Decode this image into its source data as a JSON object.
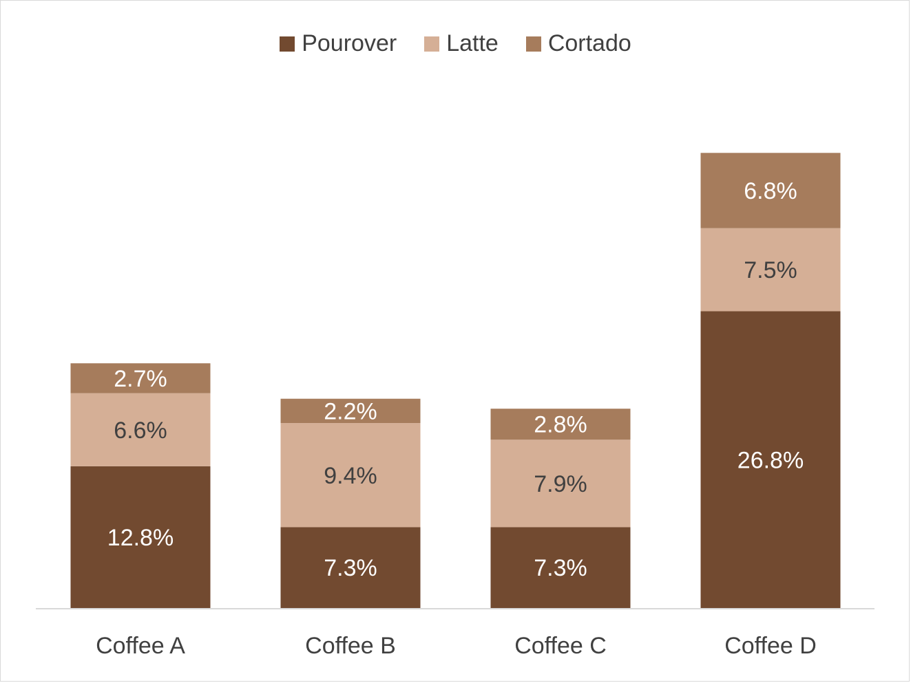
{
  "chart_data": {
    "type": "bar",
    "stacked": true,
    "categories": [
      "Coffee A",
      "Coffee B",
      "Coffee C",
      "Coffee D"
    ],
    "series": [
      {
        "name": "Pourover",
        "color": "#724a30",
        "label_color": "#ffffff",
        "values": [
          12.8,
          7.3,
          7.3,
          26.8
        ],
        "labels": [
          "12.8%",
          "7.3%",
          "7.3%",
          "26.8%"
        ]
      },
      {
        "name": "Latte",
        "color": "#d5af96",
        "label_color": "#404040",
        "values": [
          6.6,
          9.4,
          7.9,
          7.5
        ],
        "labels": [
          "6.6%",
          "9.4%",
          "7.9%",
          "7.5%"
        ]
      },
      {
        "name": "Cortado",
        "color": "#a67c5c",
        "label_color": "#ffffff",
        "values": [
          2.7,
          2.2,
          2.8,
          6.8
        ],
        "labels": [
          "2.7%",
          "2.2%",
          "2.8%",
          "6.8%"
        ]
      }
    ],
    "ylim": [
      0,
      41
    ],
    "legend_position": "top",
    "grid": false
  }
}
